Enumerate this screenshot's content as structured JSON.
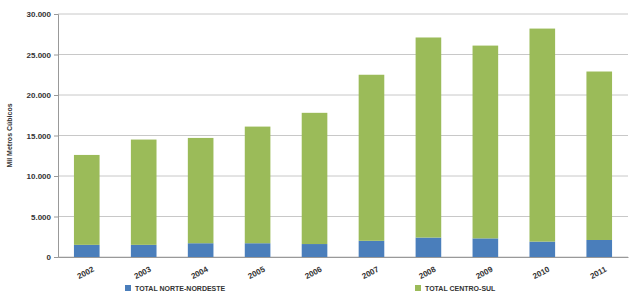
{
  "chart_data": {
    "type": "bar",
    "stacked": true,
    "grid": true,
    "legend": "bottom",
    "y_label": "Mil Metros Cúbicos",
    "categories": [
      "2002",
      "2003",
      "2004",
      "2005",
      "2006",
      "2007",
      "2008",
      "2009",
      "2010",
      "2011"
    ],
    "series": [
      {
        "name": "TOTAL NORTE-NORDESTE",
        "color": "#4a7ebb",
        "values": [
          1500,
          1500,
          1700,
          1700,
          1600,
          2000,
          2400,
          2300,
          1900,
          2100
        ]
      },
      {
        "name": "TOTAL CENTRO-SUL",
        "color": "#9bbb59",
        "values": [
          11100,
          13000,
          13000,
          14400,
          16200,
          20500,
          24700,
          23800,
          26300,
          20800
        ]
      }
    ],
    "ylim": [
      0,
      30000
    ],
    "yticks": [
      0,
      {
        "value": 5000,
        "label": "5.000"
      },
      {
        "value": 10000,
        "label": "10.000"
      },
      {
        "value": 15000,
        "label": "15.000"
      },
      {
        "value": 20000,
        "label": "20.000"
      },
      {
        "value": 25000,
        "label": "25.000"
      },
      {
        "value": 30000,
        "label": "30.000"
      }
    ]
  }
}
